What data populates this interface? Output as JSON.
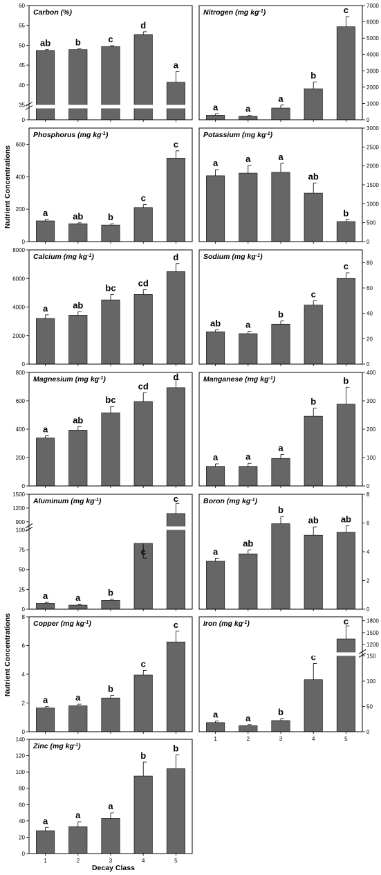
{
  "figure": {
    "y_axis_label": "Nutrient Concentrations",
    "x_axis_label": "Decay Class"
  },
  "chart_data": [
    {
      "type": "bar",
      "title": "Carbon (%)",
      "categories": [
        "1",
        "2",
        "3",
        "4",
        "5"
      ],
      "values": [
        48.7,
        48.9,
        49.7,
        52.7,
        40.7
      ],
      "errors": [
        0.2,
        0.2,
        0.2,
        0.7,
        2.7
      ],
      "letters": [
        "ab",
        "b",
        "c",
        "d",
        "a"
      ],
      "y_axis_side": "left",
      "axis_break": true,
      "ylim_lower": [
        0,
        5
      ],
      "ylim_upper": [
        35,
        60
      ],
      "lower_ticks": [
        0
      ],
      "upper_ticks": [
        35,
        40,
        45,
        50,
        55,
        60
      ]
    },
    {
      "type": "bar",
      "title": "Nitrogen (mg kg-1)",
      "categories": [
        "1",
        "2",
        "3",
        "4",
        "5"
      ],
      "values": [
        280,
        210,
        720,
        1900,
        5700
      ],
      "errors": [
        90,
        70,
        180,
        420,
        620
      ],
      "letters": [
        "a",
        "a",
        "a",
        "b",
        "c"
      ],
      "y_axis_side": "right",
      "ylim": [
        0,
        7000
      ],
      "ticks": [
        0,
        1000,
        2000,
        3000,
        4000,
        5000,
        6000,
        7000
      ]
    },
    {
      "type": "bar",
      "title": "Phosphorus (mg kg-1)",
      "categories": [
        "1",
        "2",
        "3",
        "4",
        "5"
      ],
      "values": [
        128,
        110,
        102,
        210,
        515
      ],
      "errors": [
        8,
        6,
        8,
        18,
        45
      ],
      "letters": [
        "a",
        "ab",
        "b",
        "c",
        "c"
      ],
      "y_axis_side": "left",
      "ylim": [
        0,
        700
      ],
      "ticks": [
        0,
        200,
        400,
        600
      ]
    },
    {
      "type": "bar",
      "title": "Potassium (mg kg-1)",
      "categories": [
        "1",
        "2",
        "3",
        "4",
        "5"
      ],
      "values": [
        1740,
        1810,
        1830,
        1280,
        530
      ],
      "errors": [
        160,
        200,
        240,
        270,
        50
      ],
      "letters": [
        "a",
        "a",
        "a",
        "ab",
        "b"
      ],
      "y_axis_side": "right",
      "ylim": [
        0,
        3000
      ],
      "ticks": [
        0,
        500,
        1000,
        1500,
        2000,
        2500,
        3000
      ]
    },
    {
      "type": "bar",
      "title": "Calcium (mg kg-1)",
      "categories": [
        "1",
        "2",
        "3",
        "4",
        "5"
      ],
      "values": [
        3200,
        3420,
        4500,
        4880,
        6480
      ],
      "errors": [
        250,
        250,
        380,
        330,
        560
      ],
      "letters": [
        "a",
        "ab",
        "bc",
        "cd",
        "d"
      ],
      "y_axis_side": "left",
      "ylim": [
        0,
        8000
      ],
      "ticks": [
        0,
        2000,
        4000,
        6000,
        8000
      ]
    },
    {
      "type": "bar",
      "title": "Sodium (mg kg-1)",
      "categories": [
        "1",
        "2",
        "3",
        "4",
        "5"
      ],
      "values": [
        25.5,
        24.0,
        31.5,
        46.5,
        67.5
      ],
      "errors": [
        1.5,
        1.8,
        2.5,
        3.5,
        4.5
      ],
      "letters": [
        "ab",
        "a",
        "b",
        "c",
        "c"
      ],
      "y_axis_side": "right",
      "ylim": [
        0,
        90
      ],
      "ticks": [
        0,
        20,
        40,
        60,
        80
      ]
    },
    {
      "type": "bar",
      "title": "Magnesium (mg kg-1)",
      "categories": [
        "1",
        "2",
        "3",
        "4",
        "5"
      ],
      "values": [
        338,
        393,
        515,
        595,
        693
      ],
      "errors": [
        15,
        25,
        45,
        62,
        55
      ],
      "letters": [
        "a",
        "ab",
        "bc",
        "cd",
        "d"
      ],
      "y_axis_side": "left",
      "ylim": [
        0,
        800
      ],
      "ticks": [
        0,
        200,
        400,
        600,
        800
      ]
    },
    {
      "type": "bar",
      "title": "Manganese (mg kg-1)",
      "categories": [
        "1",
        "2",
        "3",
        "4",
        "5"
      ],
      "values": [
        69,
        69,
        97,
        246,
        288
      ],
      "errors": [
        9,
        11,
        14,
        28,
        60
      ],
      "letters": [
        "a",
        "a",
        "a",
        "b",
        "b"
      ],
      "y_axis_side": "right",
      "ylim": [
        0,
        400
      ],
      "ticks": [
        0,
        100,
        200,
        300,
        400
      ]
    },
    {
      "type": "bar",
      "title": "Aluminum (mg kg-1)",
      "categories": [
        "1",
        "2",
        "3",
        "4",
        "5"
      ],
      "values": [
        7.5,
        5.2,
        11.0,
        83.0,
        1080
      ],
      "errors": [
        1.2,
        0.8,
        1.8,
        27.0,
        220
      ],
      "letters": [
        "a",
        "a",
        "b",
        "c",
        "c"
      ],
      "y_axis_side": "left",
      "axis_break": true,
      "ylim_lower": [
        0,
        100
      ],
      "ylim_upper": [
        800,
        1500
      ],
      "lower_ticks": [
        0,
        25,
        50,
        75,
        100
      ],
      "upper_ticks": [
        900,
        1200,
        1500
      ]
    },
    {
      "type": "bar",
      "title": "Boron (mg kg-1)",
      "categories": [
        "1",
        "2",
        "3",
        "4",
        "5"
      ],
      "values": [
        3.35,
        3.85,
        5.95,
        5.15,
        5.35
      ],
      "errors": [
        0.2,
        0.28,
        0.5,
        0.58,
        0.45
      ],
      "letters": [
        "a",
        "ab",
        "b",
        "ab",
        "ab"
      ],
      "y_axis_side": "right",
      "ylim": [
        0,
        8
      ],
      "ticks": [
        0,
        2,
        4,
        6,
        8
      ]
    },
    {
      "type": "bar",
      "title": "Copper (mg kg-1)",
      "categories": [
        "1",
        "2",
        "3",
        "4",
        "5"
      ],
      "values": [
        1.65,
        1.8,
        2.35,
        3.95,
        6.25
      ],
      "errors": [
        0.1,
        0.12,
        0.18,
        0.32,
        0.75
      ],
      "letters": [
        "a",
        "a",
        "b",
        "c",
        "c"
      ],
      "y_axis_side": "left",
      "ylim": [
        0,
        8
      ],
      "ticks": [
        0,
        2,
        4,
        6,
        8
      ]
    },
    {
      "type": "bar",
      "title": "Iron (mg kg-1)",
      "categories": [
        "1",
        "2",
        "3",
        "4",
        "5"
      ],
      "values": [
        18,
        12,
        22,
        103,
        1340
      ],
      "errors": [
        3,
        2,
        4,
        32,
        330
      ],
      "letters": [
        "a",
        "a",
        "b",
        "c",
        "c"
      ],
      "y_axis_side": "right",
      "axis_break": true,
      "ylim_lower": [
        0,
        150
      ],
      "ylim_upper": [
        1000,
        1900
      ],
      "lower_ticks": [
        0,
        50,
        100,
        150
      ],
      "upper_ticks": [
        1200,
        1500,
        1800
      ]
    },
    {
      "type": "bar",
      "title": "Zinc (mg kg-1)",
      "categories": [
        "1",
        "2",
        "3",
        "4",
        "5"
      ],
      "values": [
        28,
        33,
        43,
        95,
        104
      ],
      "errors": [
        4,
        6,
        7,
        17,
        17
      ],
      "letters": [
        "a",
        "a",
        "a",
        "b",
        "b"
      ],
      "y_axis_side": "left",
      "ylim": [
        0,
        140
      ],
      "ticks": [
        0,
        20,
        40,
        60,
        80,
        100,
        120,
        140
      ]
    }
  ],
  "style": {
    "bar_color": "#666666",
    "frame_color": "#000000",
    "text_color": "#000000"
  }
}
